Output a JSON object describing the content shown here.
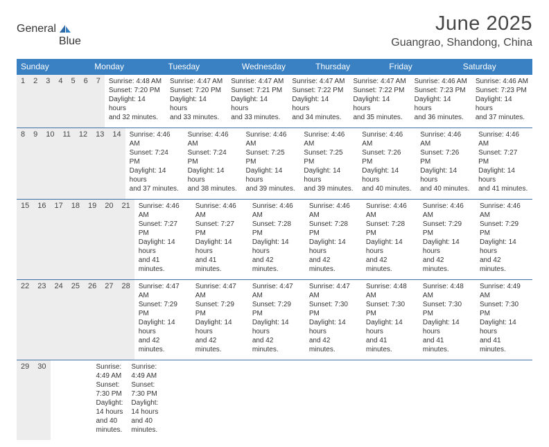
{
  "logo": {
    "text1": "General",
    "text2": "Blue"
  },
  "title": "June 2025",
  "location": "Guangrao, Shandong, China",
  "colors": {
    "header_bg": "#3a81c3",
    "daynum_bg": "#ededed",
    "week_border": "#3a6fa5",
    "text": "#333333",
    "title_text": "#444444"
  },
  "dayNames": [
    "Sunday",
    "Monday",
    "Tuesday",
    "Wednesday",
    "Thursday",
    "Friday",
    "Saturday"
  ],
  "weeks": [
    [
      {
        "n": "1",
        "sr": "4:48 AM",
        "ss": "7:20 PM",
        "dh": "14",
        "dm": "32"
      },
      {
        "n": "2",
        "sr": "4:47 AM",
        "ss": "7:20 PM",
        "dh": "14",
        "dm": "33"
      },
      {
        "n": "3",
        "sr": "4:47 AM",
        "ss": "7:21 PM",
        "dh": "14",
        "dm": "33"
      },
      {
        "n": "4",
        "sr": "4:47 AM",
        "ss": "7:22 PM",
        "dh": "14",
        "dm": "34"
      },
      {
        "n": "5",
        "sr": "4:47 AM",
        "ss": "7:22 PM",
        "dh": "14",
        "dm": "35"
      },
      {
        "n": "6",
        "sr": "4:46 AM",
        "ss": "7:23 PM",
        "dh": "14",
        "dm": "36"
      },
      {
        "n": "7",
        "sr": "4:46 AM",
        "ss": "7:23 PM",
        "dh": "14",
        "dm": "37"
      }
    ],
    [
      {
        "n": "8",
        "sr": "4:46 AM",
        "ss": "7:24 PM",
        "dh": "14",
        "dm": "37"
      },
      {
        "n": "9",
        "sr": "4:46 AM",
        "ss": "7:24 PM",
        "dh": "14",
        "dm": "38"
      },
      {
        "n": "10",
        "sr": "4:46 AM",
        "ss": "7:25 PM",
        "dh": "14",
        "dm": "39"
      },
      {
        "n": "11",
        "sr": "4:46 AM",
        "ss": "7:25 PM",
        "dh": "14",
        "dm": "39"
      },
      {
        "n": "12",
        "sr": "4:46 AM",
        "ss": "7:26 PM",
        "dh": "14",
        "dm": "40"
      },
      {
        "n": "13",
        "sr": "4:46 AM",
        "ss": "7:26 PM",
        "dh": "14",
        "dm": "40"
      },
      {
        "n": "14",
        "sr": "4:46 AM",
        "ss": "7:27 PM",
        "dh": "14",
        "dm": "41"
      }
    ],
    [
      {
        "n": "15",
        "sr": "4:46 AM",
        "ss": "7:27 PM",
        "dh": "14",
        "dm": "41"
      },
      {
        "n": "16",
        "sr": "4:46 AM",
        "ss": "7:27 PM",
        "dh": "14",
        "dm": "41"
      },
      {
        "n": "17",
        "sr": "4:46 AM",
        "ss": "7:28 PM",
        "dh": "14",
        "dm": "42"
      },
      {
        "n": "18",
        "sr": "4:46 AM",
        "ss": "7:28 PM",
        "dh": "14",
        "dm": "42"
      },
      {
        "n": "19",
        "sr": "4:46 AM",
        "ss": "7:28 PM",
        "dh": "14",
        "dm": "42"
      },
      {
        "n": "20",
        "sr": "4:46 AM",
        "ss": "7:29 PM",
        "dh": "14",
        "dm": "42"
      },
      {
        "n": "21",
        "sr": "4:46 AM",
        "ss": "7:29 PM",
        "dh": "14",
        "dm": "42"
      }
    ],
    [
      {
        "n": "22",
        "sr": "4:47 AM",
        "ss": "7:29 PM",
        "dh": "14",
        "dm": "42"
      },
      {
        "n": "23",
        "sr": "4:47 AM",
        "ss": "7:29 PM",
        "dh": "14",
        "dm": "42"
      },
      {
        "n": "24",
        "sr": "4:47 AM",
        "ss": "7:29 PM",
        "dh": "14",
        "dm": "42"
      },
      {
        "n": "25",
        "sr": "4:47 AM",
        "ss": "7:30 PM",
        "dh": "14",
        "dm": "42"
      },
      {
        "n": "26",
        "sr": "4:48 AM",
        "ss": "7:30 PM",
        "dh": "14",
        "dm": "41"
      },
      {
        "n": "27",
        "sr": "4:48 AM",
        "ss": "7:30 PM",
        "dh": "14",
        "dm": "41"
      },
      {
        "n": "28",
        "sr": "4:49 AM",
        "ss": "7:30 PM",
        "dh": "14",
        "dm": "41"
      }
    ],
    [
      {
        "n": "29",
        "sr": "4:49 AM",
        "ss": "7:30 PM",
        "dh": "14",
        "dm": "40"
      },
      {
        "n": "30",
        "sr": "4:49 AM",
        "ss": "7:30 PM",
        "dh": "14",
        "dm": "40"
      },
      null,
      null,
      null,
      null,
      null
    ]
  ],
  "labels": {
    "sunrise": "Sunrise: ",
    "sunset": "Sunset: ",
    "daylight_pre": "Daylight: ",
    "hours": " hours",
    "and": "and ",
    "minutes": " minutes."
  }
}
